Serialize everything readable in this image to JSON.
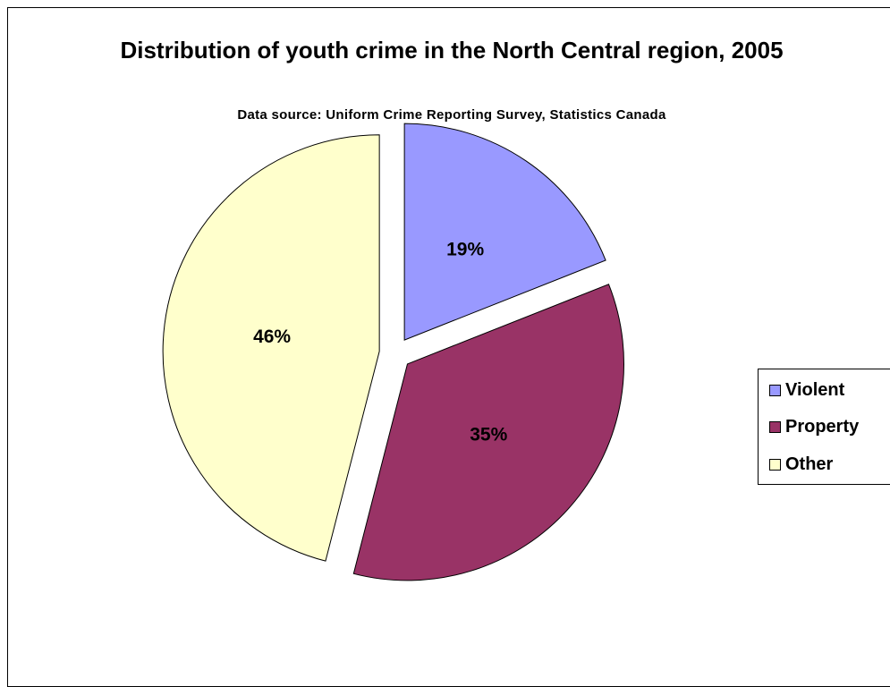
{
  "chart_data": {
    "type": "pie",
    "title": "Distribution of youth crime in the North Central region, 2005",
    "subtitle": "Data source:  Uniform Crime Reporting Survey, Statistics Canada",
    "categories": [
      "Violent",
      "Property",
      "Other"
    ],
    "values": [
      19,
      35,
      46
    ],
    "labels": [
      "19%",
      "35%",
      "46%"
    ],
    "colors": [
      "#9999ff",
      "#993366",
      "#ffffcc"
    ],
    "exploded": true,
    "legend_position": "right"
  },
  "legend": {
    "items": [
      {
        "label": "Violent",
        "color": "#9999ff"
      },
      {
        "label": "Property",
        "color": "#993366"
      },
      {
        "label": "Other",
        "color": "#ffffcc"
      }
    ]
  }
}
